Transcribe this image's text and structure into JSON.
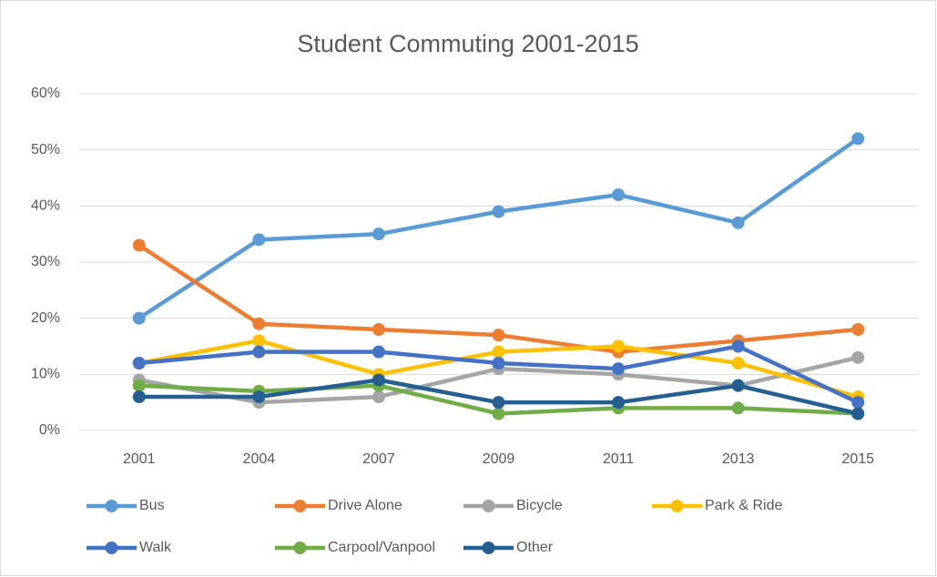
{
  "chart_data": {
    "type": "line",
    "title": "Student Commuting 2001-2015",
    "categories": [
      "2001",
      "2004",
      "2007",
      "2009",
      "2011",
      "2013",
      "2015"
    ],
    "ylim": [
      0,
      60
    ],
    "yticks": [
      {
        "value": 0,
        "label": "0%"
      },
      {
        "value": 10,
        "label": "10%"
      },
      {
        "value": 20,
        "label": "20%"
      },
      {
        "value": 30,
        "label": "30%"
      },
      {
        "value": 40,
        "label": "40%"
      },
      {
        "value": 50,
        "label": "50%"
      },
      {
        "value": 60,
        "label": "60%"
      }
    ],
    "grid": true,
    "legend": "bottom",
    "series": [
      {
        "name": "Bus",
        "color": "#5b9bd5",
        "values": [
          20,
          34,
          35,
          39,
          42,
          37,
          52
        ]
      },
      {
        "name": "Drive Alone",
        "color": "#ed7d31",
        "values": [
          33,
          19,
          18,
          17,
          14,
          16,
          18
        ]
      },
      {
        "name": "Bicycle",
        "color": "#a5a5a5",
        "values": [
          9,
          5,
          6,
          11,
          10,
          8,
          13
        ]
      },
      {
        "name": "Park & Ride",
        "color": "#ffc000",
        "values": [
          12,
          16,
          10,
          14,
          15,
          12,
          6
        ]
      },
      {
        "name": "Walk",
        "color": "#4472c4",
        "values": [
          12,
          14,
          14,
          12,
          11,
          15,
          5
        ]
      },
      {
        "name": "Carpool/Vanpool",
        "color": "#70ad47",
        "values": [
          8,
          7,
          8,
          3,
          4,
          4,
          3
        ]
      },
      {
        "name": "Other",
        "color": "#255e91",
        "values": [
          6,
          6,
          9,
          5,
          5,
          8,
          3
        ]
      }
    ]
  }
}
